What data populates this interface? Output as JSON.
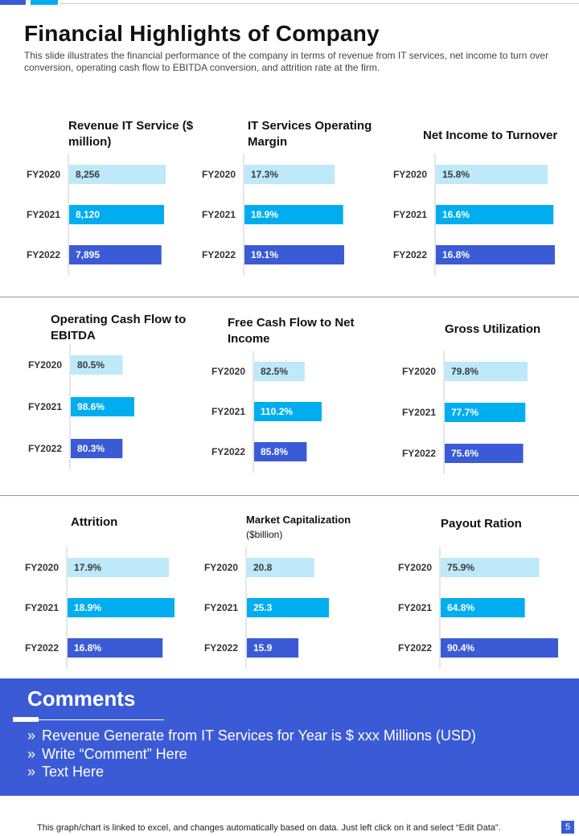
{
  "header": {
    "title": "Financial Highlights of Company",
    "subtitle": "This slide illustrates the financial performance  of the company in terms of revenue  from IT services, net income to turn over  conversion,  operating  cash flow to EBITDA conversion,  and attrition rate at the firm."
  },
  "colors": {
    "fy2020": "#bde9fb",
    "fy2021": "#00aeef",
    "fy2022": "#3b5bd6",
    "accent": "#3b5bd6"
  },
  "chart_data": [
    {
      "type": "bar",
      "orientation": "horizontal",
      "title": "Revenue IT Service ($ million)",
      "categories": [
        "FY2020",
        "FY2021",
        "FY2022"
      ],
      "values": [
        8256,
        8120,
        7895
      ],
      "labels": [
        "8,256",
        "8,120",
        "7,895"
      ]
    },
    {
      "type": "bar",
      "orientation": "horizontal",
      "title": "IT Services Operating Margin",
      "categories": [
        "FY2020",
        "FY2021",
        "FY2022"
      ],
      "values": [
        17.3,
        18.9,
        19.1
      ],
      "labels": [
        "17.3%",
        "18.9%",
        "19.1%"
      ]
    },
    {
      "type": "bar",
      "orientation": "horizontal",
      "title": "Net Income to Turnover",
      "categories": [
        "FY2020",
        "FY2021",
        "FY2022"
      ],
      "values": [
        15.8,
        16.6,
        16.8
      ],
      "labels": [
        "15.8%",
        "16.6%",
        "16.8%"
      ]
    },
    {
      "type": "bar",
      "orientation": "horizontal",
      "title": "Operating Cash Flow to EBITDA",
      "categories": [
        "FY2020",
        "FY2021",
        "FY2022"
      ],
      "values": [
        80.5,
        98.6,
        80.3
      ],
      "labels": [
        "80.5%",
        "98.6%",
        "80.3%"
      ]
    },
    {
      "type": "bar",
      "orientation": "horizontal",
      "title": "Free Cash Flow to Net Income",
      "categories": [
        "FY2020",
        "FY2021",
        "FY2022"
      ],
      "values": [
        82.5,
        110.2,
        85.8
      ],
      "labels": [
        "82.5%",
        "110.2%",
        "85.8%"
      ]
    },
    {
      "type": "bar",
      "orientation": "horizontal",
      "title": "Gross  Utilization",
      "categories": [
        "FY2020",
        "FY2021",
        "FY2022"
      ],
      "values": [
        79.8,
        77.7,
        75.6
      ],
      "labels": [
        "79.8%",
        "77.7%",
        "75.6%"
      ]
    },
    {
      "type": "bar",
      "orientation": "horizontal",
      "title": "Attrition",
      "categories": [
        "FY2020",
        "FY2021",
        "FY2022"
      ],
      "values": [
        17.9,
        18.9,
        16.8
      ],
      "labels": [
        "17.9%",
        "18.9%",
        "16.8%"
      ]
    },
    {
      "type": "bar",
      "orientation": "horizontal",
      "title": "Market Capitalization",
      "subtitle": "($billion)",
      "categories": [
        "FY2020",
        "FY2021",
        "FY2022"
      ],
      "values": [
        20.8,
        25.3,
        15.9
      ],
      "labels": [
        "20.8",
        "25.3",
        "15.9"
      ]
    },
    {
      "type": "bar",
      "orientation": "horizontal",
      "title": "Payout Ration",
      "categories": [
        "FY2020",
        "FY2021",
        "FY2022"
      ],
      "values": [
        75.9,
        64.8,
        90.4
      ],
      "labels": [
        "75.9%",
        "64.8%",
        "90.4%"
      ]
    }
  ],
  "comments": {
    "title": "Comments",
    "items": [
      "Revenue Generate from IT Services for Year is $ xxx Millions (USD)",
      "Write “Comment” Here",
      "Text Here"
    ]
  },
  "footer": {
    "note": "This graph/chart is linked to excel,  and changes automatically based on data. Just left click on it and select “Edit Data”.",
    "page": "5"
  }
}
